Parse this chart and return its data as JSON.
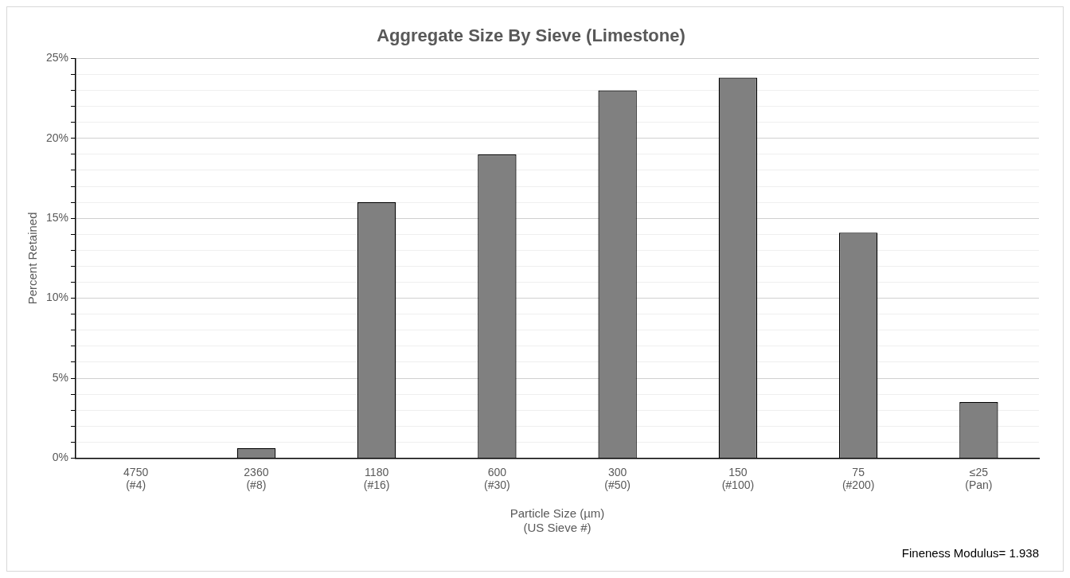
{
  "chart_data": {
    "type": "bar",
    "title": "Aggregate Size By Sieve (Limestone)",
    "xlabel": "Particle Size (µm)\n(US Sieve #)",
    "ylabel": "Percent Retained",
    "categories": [
      "4750\n(#4)",
      "2360\n(#8)",
      "1180\n(#16)",
      "600\n(#30)",
      "300\n(#50)",
      "150\n(#100)",
      "75\n(#200)",
      "≤25\n(Pan)"
    ],
    "values": [
      0,
      0.63,
      16.0,
      19.0,
      23.0,
      23.8,
      14.1,
      3.5
    ],
    "color": "#808080",
    "ylim": [
      0,
      25
    ],
    "yticks": [
      {
        "value": 0,
        "label": "0%"
      },
      {
        "value": 1,
        "label": null
      },
      {
        "value": 2,
        "label": null
      },
      {
        "value": 3,
        "label": null
      },
      {
        "value": 4,
        "label": null
      },
      {
        "value": 5,
        "label": "5%"
      },
      {
        "value": 6,
        "label": null
      },
      {
        "value": 7,
        "label": null
      },
      {
        "value": 8,
        "label": null
      },
      {
        "value": 9,
        "label": null
      },
      {
        "value": 10,
        "label": "10%"
      },
      {
        "value": 11,
        "label": null
      },
      {
        "value": 12,
        "label": null
      },
      {
        "value": 13,
        "label": null
      },
      {
        "value": 14,
        "label": null
      },
      {
        "value": 15,
        "label": "15%"
      },
      {
        "value": 16,
        "label": null
      },
      {
        "value": 17,
        "label": null
      },
      {
        "value": 18,
        "label": null
      },
      {
        "value": 19,
        "label": null
      },
      {
        "value": 20,
        "label": "20%"
      },
      {
        "value": 21,
        "label": null
      },
      {
        "value": 22,
        "label": null
      },
      {
        "value": 23,
        "label": null
      },
      {
        "value": 24,
        "label": null
      },
      {
        "value": 25,
        "label": "25%"
      }
    ],
    "grid": "y",
    "legend": false,
    "annotations": [
      "Fineness Modulus= 1.938"
    ]
  }
}
